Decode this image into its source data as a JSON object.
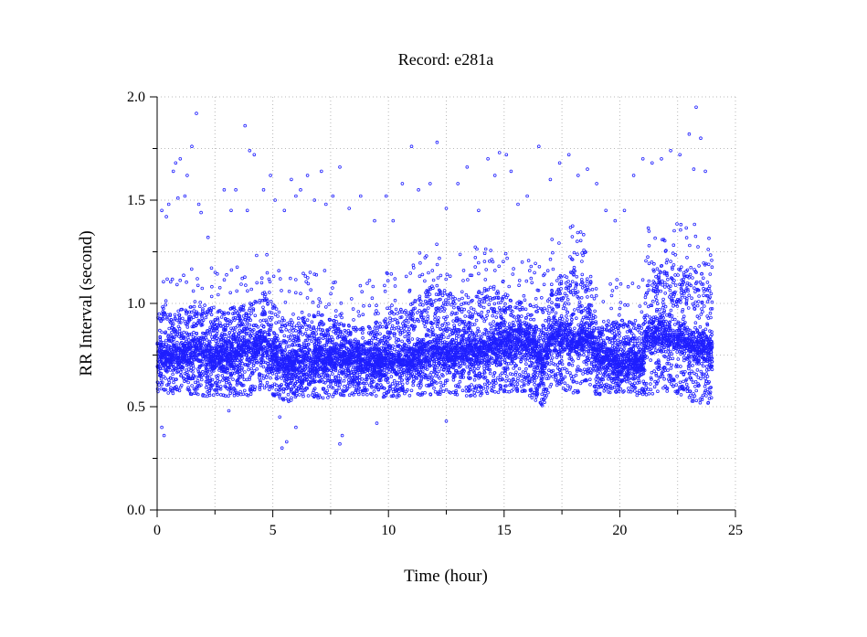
{
  "chart_data": {
    "type": "scatter",
    "title": "Record:  e281a",
    "xlabel": "Time (hour)",
    "ylabel": "RR Interval (second)",
    "xlim": [
      0,
      25
    ],
    "ylim": [
      0,
      2.0
    ],
    "x_ticks": [
      0,
      5,
      10,
      15,
      20,
      25
    ],
    "y_ticks": [
      0.0,
      0.5,
      1.0,
      1.5,
      2.0
    ],
    "x_tick_labels": [
      "0",
      "5",
      "10",
      "15",
      "20",
      "25"
    ],
    "y_tick_labels": [
      "0.0",
      "0.5",
      "1.0",
      "1.5",
      "2.0"
    ],
    "grid": true,
    "marker": "circle",
    "color": "#1f1fff",
    "data_range_x": [
      0,
      24
    ],
    "band_profile": {
      "hours": [
        0,
        1,
        2,
        2.5,
        4,
        4.7,
        5.5,
        7,
        8,
        9,
        10,
        11,
        12,
        13,
        14,
        15,
        16,
        16.7,
        17,
        18,
        18.8,
        19,
        20,
        21,
        21.2,
        22,
        23,
        24
      ],
      "lower": [
        0.56,
        0.56,
        0.54,
        0.55,
        0.55,
        0.58,
        0.52,
        0.54,
        0.55,
        0.56,
        0.54,
        0.55,
        0.56,
        0.55,
        0.55,
        0.57,
        0.56,
        0.5,
        0.6,
        0.56,
        0.6,
        0.55,
        0.57,
        0.55,
        0.56,
        0.57,
        0.53,
        0.5
      ],
      "upper": [
        0.95,
        0.97,
        1.0,
        0.96,
        1.0,
        1.06,
        0.92,
        0.96,
        0.9,
        0.88,
        0.95,
        1.0,
        1.1,
        1.02,
        1.08,
        1.05,
        1.0,
        0.98,
        1.1,
        1.18,
        1.1,
        0.88,
        0.92,
        0.9,
        1.15,
        1.22,
        1.18,
        1.12
      ],
      "center": [
        0.75,
        0.76,
        0.77,
        0.74,
        0.78,
        0.8,
        0.7,
        0.72,
        0.74,
        0.72,
        0.72,
        0.74,
        0.77,
        0.76,
        0.78,
        0.8,
        0.84,
        0.7,
        0.84,
        0.82,
        0.83,
        0.74,
        0.71,
        0.72,
        0.85,
        0.85,
        0.8,
        0.77
      ]
    },
    "outliers": [
      [
        0.2,
        1.45
      ],
      [
        0.4,
        1.42
      ],
      [
        0.5,
        1.48
      ],
      [
        0.7,
        1.64
      ],
      [
        0.8,
        1.68
      ],
      [
        0.9,
        1.51
      ],
      [
        1.0,
        1.7
      ],
      [
        1.2,
        1.52
      ],
      [
        1.3,
        1.62
      ],
      [
        1.5,
        1.76
      ],
      [
        1.7,
        1.92
      ],
      [
        1.8,
        1.48
      ],
      [
        1.9,
        1.44
      ],
      [
        2.2,
        1.32
      ],
      [
        2.9,
        1.55
      ],
      [
        3.2,
        1.45
      ],
      [
        3.4,
        1.55
      ],
      [
        3.8,
        1.86
      ],
      [
        3.9,
        1.45
      ],
      [
        4.0,
        1.74
      ],
      [
        4.2,
        1.72
      ],
      [
        4.6,
        1.55
      ],
      [
        4.9,
        1.62
      ],
      [
        5.1,
        1.5
      ],
      [
        5.5,
        1.45
      ],
      [
        5.8,
        1.6
      ],
      [
        6.0,
        1.52
      ],
      [
        6.2,
        1.55
      ],
      [
        6.5,
        1.62
      ],
      [
        6.8,
        1.5
      ],
      [
        7.1,
        1.64
      ],
      [
        7.3,
        1.48
      ],
      [
        7.6,
        1.52
      ],
      [
        7.9,
        1.66
      ],
      [
        8.3,
        1.46
      ],
      [
        8.8,
        1.52
      ],
      [
        9.4,
        1.4
      ],
      [
        9.9,
        1.52
      ],
      [
        10.2,
        1.4
      ],
      [
        10.6,
        1.58
      ],
      [
        11.0,
        1.76
      ],
      [
        11.3,
        1.55
      ],
      [
        11.8,
        1.58
      ],
      [
        12.1,
        1.78
      ],
      [
        12.5,
        1.46
      ],
      [
        13.0,
        1.58
      ],
      [
        13.4,
        1.66
      ],
      [
        13.9,
        1.45
      ],
      [
        14.3,
        1.7
      ],
      [
        14.6,
        1.62
      ],
      [
        14.8,
        1.73
      ],
      [
        15.1,
        1.72
      ],
      [
        15.3,
        1.64
      ],
      [
        15.6,
        1.48
      ],
      [
        16.0,
        1.52
      ],
      [
        16.5,
        1.76
      ],
      [
        17.0,
        1.6
      ],
      [
        17.4,
        1.68
      ],
      [
        17.8,
        1.72
      ],
      [
        18.2,
        1.62
      ],
      [
        18.6,
        1.65
      ],
      [
        19.0,
        1.58
      ],
      [
        19.4,
        1.45
      ],
      [
        19.8,
        1.4
      ],
      [
        20.2,
        1.45
      ],
      [
        20.6,
        1.62
      ],
      [
        21.0,
        1.7
      ],
      [
        21.4,
        1.68
      ],
      [
        21.8,
        1.7
      ],
      [
        22.2,
        1.74
      ],
      [
        22.6,
        1.72
      ],
      [
        23.0,
        1.82
      ],
      [
        23.2,
        1.65
      ],
      [
        23.3,
        1.95
      ],
      [
        23.5,
        1.8
      ],
      [
        23.7,
        1.64
      ],
      [
        0.2,
        0.4
      ],
      [
        0.3,
        0.36
      ],
      [
        5.4,
        0.3
      ],
      [
        5.6,
        0.33
      ],
      [
        6.0,
        0.4
      ],
      [
        7.9,
        0.32
      ],
      [
        8.0,
        0.36
      ],
      [
        9.5,
        0.42
      ],
      [
        12.5,
        0.43
      ],
      [
        5.3,
        0.45
      ],
      [
        3.1,
        0.48
      ]
    ]
  }
}
